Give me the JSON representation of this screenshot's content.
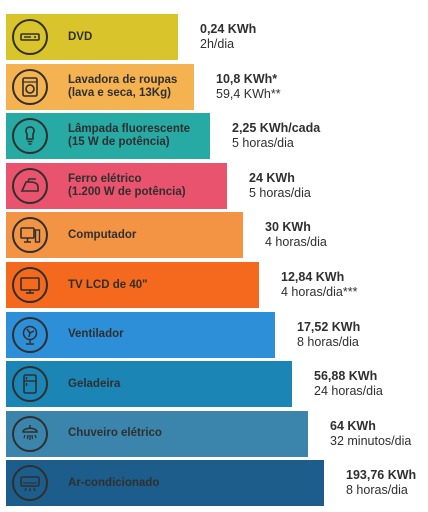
{
  "chart_data": {
    "type": "bar",
    "orientation": "horizontal",
    "unit": "KWh",
    "categories": [
      {
        "name": "DVD",
        "line1": "DVD",
        "line2": "",
        "value_label": "0,24 KWh",
        "detail": "2h/dia",
        "value": 0.24,
        "color": "#d9c52b",
        "icon": "dvd-player-icon"
      },
      {
        "name": "Lavadora de roupas (lava e seca, 13Kg)",
        "line1": "Lavadora de roupas",
        "line2": "(lava e seca, 13Kg)",
        "value_label": "10,8 KWh*",
        "detail": "59,4 KWh**",
        "value": 10.8,
        "color": "#f5b250",
        "icon": "washing-machine-icon"
      },
      {
        "name": "Lâmpada fluorescente (15 W de potência)",
        "line1": "Lâmpada fluorescente",
        "line2": "(15 W de potência)",
        "value_label": "2,25 KWh/cada",
        "detail": "5 horas/dia",
        "value": 2.25,
        "color": "#27aaa3",
        "icon": "lightbulb-icon"
      },
      {
        "name": "Ferro elétrico (1.200 W de potência)",
        "line1": "Ferro elétrico",
        "line2": "(1.200 W de potência)",
        "value_label": "24 KWh",
        "detail": "5 horas/dia",
        "value": 24,
        "color": "#e9536d",
        "icon": "iron-icon"
      },
      {
        "name": "Computador",
        "line1": "Computador",
        "line2": "",
        "value_label": "30 KWh",
        "detail": "4 horas/dia",
        "value": 30,
        "color": "#f39444",
        "icon": "computer-icon"
      },
      {
        "name": "TV LCD de 40\"",
        "line1": "TV LCD de 40\"",
        "line2": "",
        "value_label": "12,84 KWh",
        "detail": "4 horas/dia***",
        "value": 12.84,
        "color": "#f5691e",
        "icon": "tv-icon"
      },
      {
        "name": "Ventilador",
        "line1": "Ventilador",
        "line2": "",
        "value_label": "17,52 KWh",
        "detail": "8 horas/dia",
        "value": 17.52,
        "color": "#2d8fd8",
        "icon": "fan-icon"
      },
      {
        "name": "Geladeira",
        "line1": "Geladeira",
        "line2": "",
        "value_label": "56,88 KWh",
        "detail": "24 horas/dia",
        "value": 56.88,
        "color": "#1b86b5",
        "icon": "refrigerator-icon"
      },
      {
        "name": "Chuveiro elétrico",
        "line1": "Chuveiro elétrico",
        "line2": "",
        "value_label": "64 KWh",
        "detail": "32 minutos/dia",
        "value": 64,
        "color": "#3b85ad",
        "icon": "shower-icon"
      },
      {
        "name": "Ar-condicionado",
        "line1": "Ar-condicionado",
        "line2": "",
        "value_label": "193,76 KWh",
        "detail": "8 horas/dia",
        "value": 193.76,
        "color": "#1d5d8c",
        "icon": "air-conditioner-icon"
      }
    ]
  }
}
